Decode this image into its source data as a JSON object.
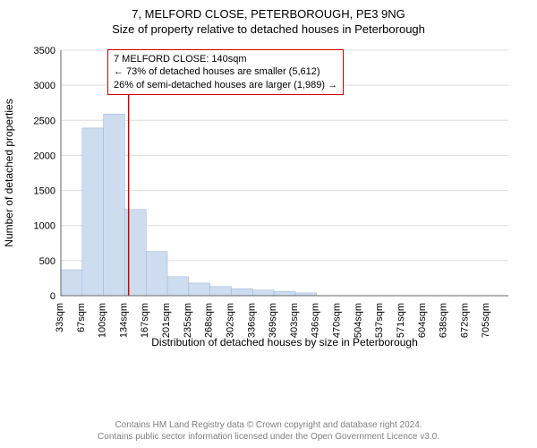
{
  "titles": {
    "line1": "7, MELFORD CLOSE, PETERBOROUGH, PE3 9NG",
    "line2": "Size of property relative to detached houses in Peterborough"
  },
  "chart": {
    "type": "histogram",
    "background_color": "#ffffff",
    "grid_color": "#dddddd",
    "axis_color": "#666666",
    "bar_fill": "#cedcef",
    "bar_stroke": "#9ab3d5",
    "marker_color": "#cc0000",
    "ylabel": "Number of detached properties",
    "xlabel": "Distribution of detached houses by size in Peterborough",
    "ylim": [
      0,
      3500
    ],
    "ytick_step": 500,
    "yticks": [
      0,
      500,
      1000,
      1500,
      2000,
      2500,
      3000,
      3500
    ],
    "x_categories": [
      "33sqm",
      "67sqm",
      "100sqm",
      "134sqm",
      "167sqm",
      "201sqm",
      "235sqm",
      "268sqm",
      "302sqm",
      "336sqm",
      "369sqm",
      "403sqm",
      "436sqm",
      "470sqm",
      "504sqm",
      "537sqm",
      "571sqm",
      "604sqm",
      "638sqm",
      "672sqm",
      "705sqm"
    ],
    "values": [
      370,
      2390,
      2590,
      1230,
      630,
      270,
      180,
      130,
      100,
      80,
      60,
      40,
      0,
      0,
      0,
      0,
      0,
      0,
      0,
      0,
      0
    ],
    "marker_position_sqm": 140,
    "marker_bin_index": 3,
    "label_fontsize": 12,
    "tick_fontsize": 11
  },
  "infobox": {
    "border_color": "#cc0000",
    "lines": {
      "l1": "7 MELFORD CLOSE: 140sqm",
      "l2": "← 73% of detached houses are smaller (5,612)",
      "l3": "26% of semi-detached houses are larger (1,989) →"
    }
  },
  "footer": {
    "line1": "Contains HM Land Registry data © Crown copyright and database right 2024.",
    "line2": "Contains public sector information licensed under the Open Government Licence v3.0.",
    "color": "#808080"
  }
}
